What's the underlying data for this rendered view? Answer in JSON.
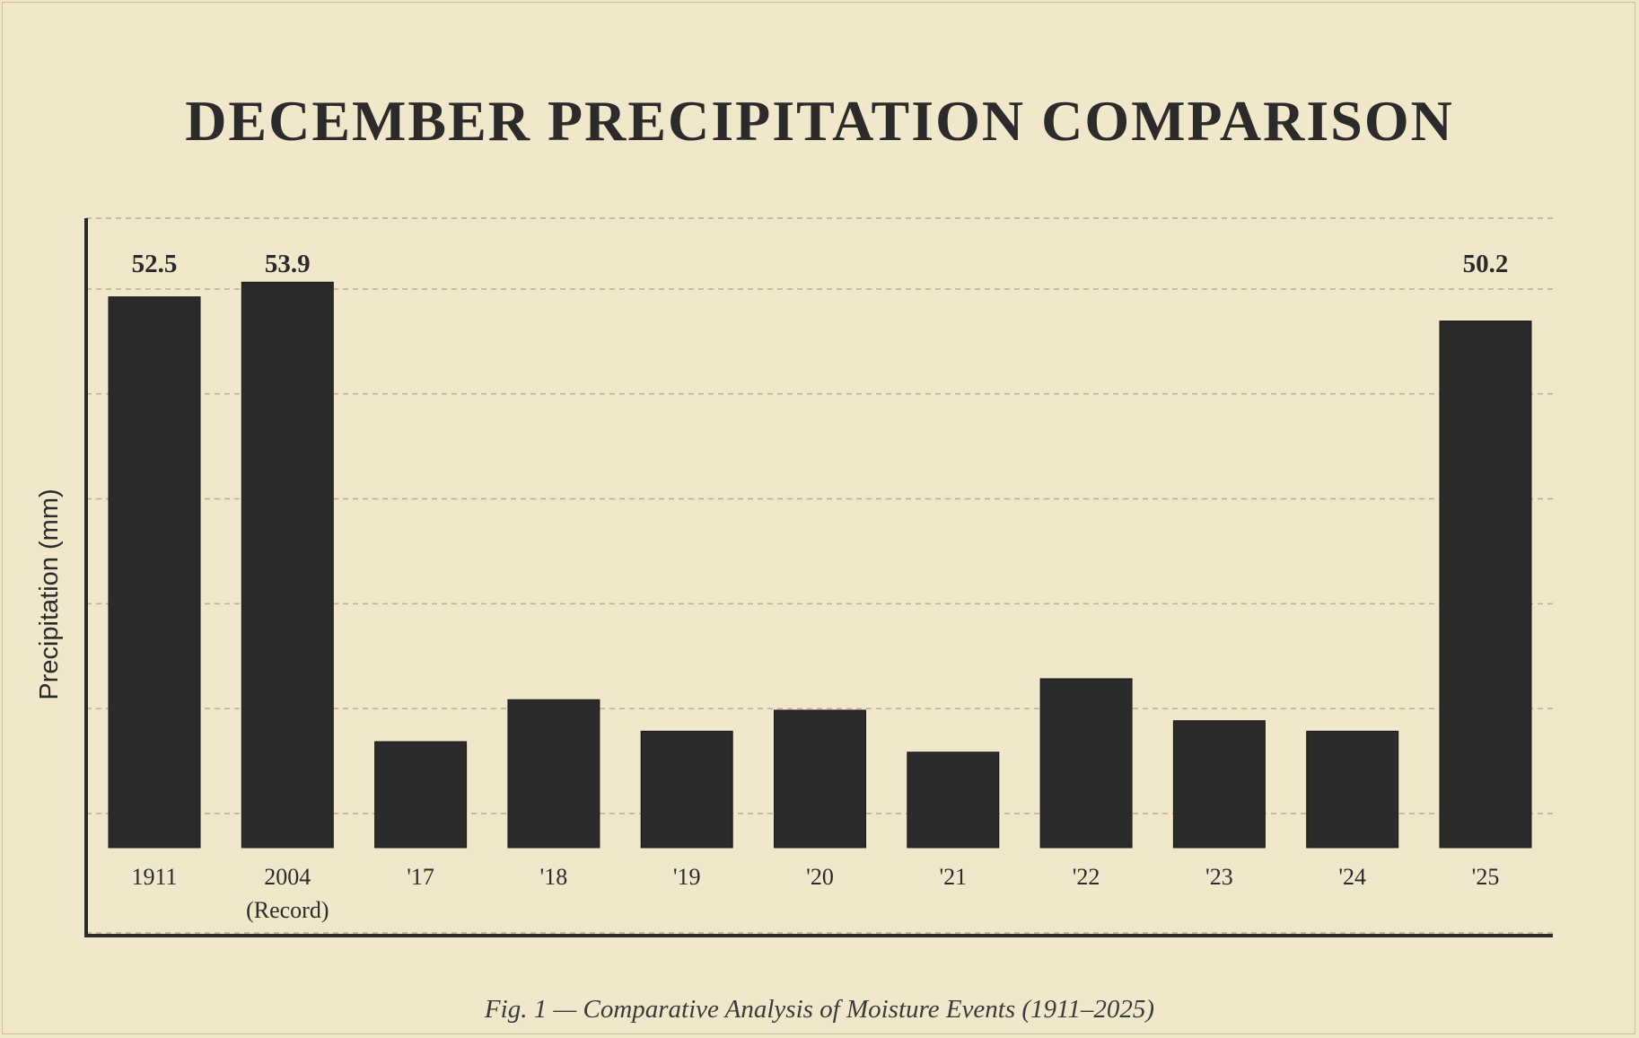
{
  "chart_data": {
    "type": "bar",
    "title": "DECEMBER PRECIPITATION COMPARISON",
    "ylabel": "Precipitation (mm)",
    "xlabel": "",
    "caption": "Fig. 1 — Comparative Analysis of Moisture Events (1911–2025)",
    "ylim": [
      0,
      60
    ],
    "gridlines": [
      0,
      10,
      20,
      30,
      40,
      50
    ],
    "grid": true,
    "categories": [
      {
        "label": "1911",
        "sublabel": "",
        "value": 52.5,
        "show_value": true,
        "value_label": "52.5"
      },
      {
        "label": "2004",
        "sublabel": "(Record)",
        "value": 53.9,
        "show_value": true,
        "value_label": "53.9"
      },
      {
        "label": "'17",
        "sublabel": "",
        "value": 10.1,
        "show_value": false,
        "value_label": ""
      },
      {
        "label": "'18",
        "sublabel": "",
        "value": 14.1,
        "show_value": false,
        "value_label": ""
      },
      {
        "label": "'19",
        "sublabel": "",
        "value": 11.1,
        "show_value": false,
        "value_label": ""
      },
      {
        "label": "'20",
        "sublabel": "",
        "value": 13.1,
        "show_value": false,
        "value_label": ""
      },
      {
        "label": "'21",
        "sublabel": "",
        "value": 9.1,
        "show_value": false,
        "value_label": ""
      },
      {
        "label": "'22",
        "sublabel": "",
        "value": 16.1,
        "show_value": false,
        "value_label": ""
      },
      {
        "label": "'23",
        "sublabel": "",
        "value": 12.1,
        "show_value": false,
        "value_label": ""
      },
      {
        "label": "'24",
        "sublabel": "",
        "value": 11.1,
        "show_value": false,
        "value_label": ""
      },
      {
        "label": "'25",
        "sublabel": "",
        "value": 50.2,
        "show_value": true,
        "value_label": "50.2"
      }
    ],
    "colors": {
      "bar": "#2b2b2b",
      "grid": "#b9ae93",
      "axis": "#2b2b2b",
      "background": "#f1e7cb"
    }
  }
}
